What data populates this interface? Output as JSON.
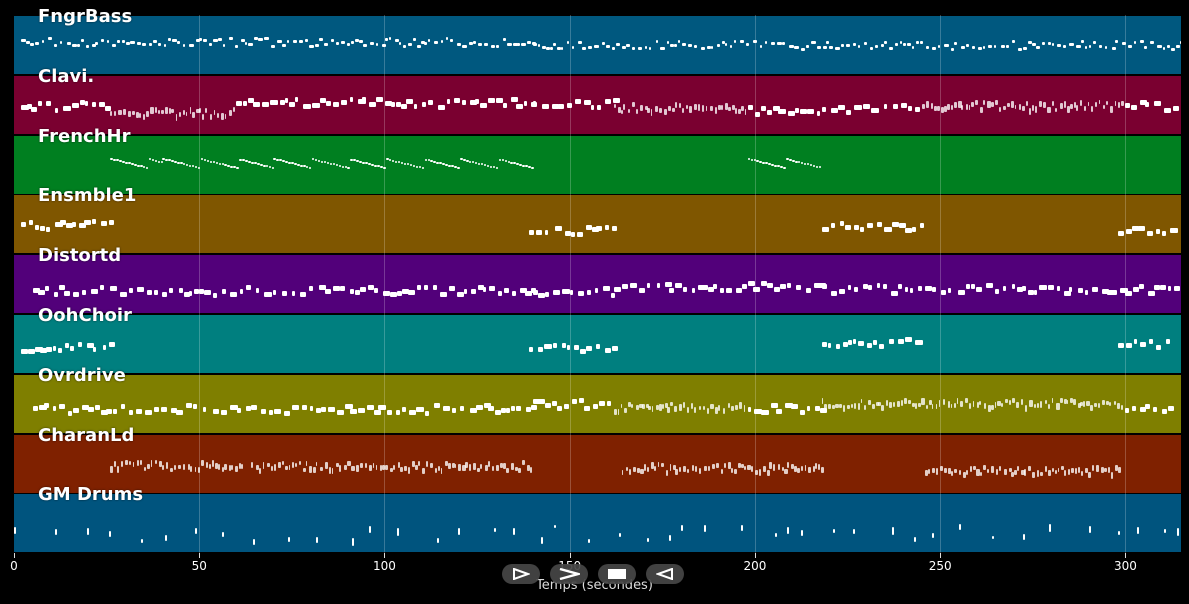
{
  "tracks": [
    {
      "name": "FngrBass",
      "color": "#00587f"
    },
    {
      "name": "Clavi.",
      "color": "#7a0030"
    },
    {
      "name": "FrenchHr",
      "color": "#007f20"
    },
    {
      "name": "Ensmble1",
      "color": "#7f5600"
    },
    {
      "name": "Distortd",
      "color": "#52007a"
    },
    {
      "name": "OohChoir",
      "color": "#007f7f"
    },
    {
      "name": "Ovrdrive",
      "color": "#7f7f00"
    },
    {
      "name": "CharanLd",
      "color": "#7f2100"
    },
    {
      "name": "GM Drums",
      "color": "#00547e"
    }
  ],
  "x_axis": {
    "label": "Temps (secondes)",
    "min": 0,
    "max": 315,
    "ticks": [
      0,
      50,
      100,
      150,
      200,
      250,
      300
    ]
  },
  "transport": {
    "play_icon": "play-outline-icon",
    "forward_icon": "fast-forward-icon",
    "stop_icon": "stop-icon",
    "back_icon": "rewind-icon"
  }
}
